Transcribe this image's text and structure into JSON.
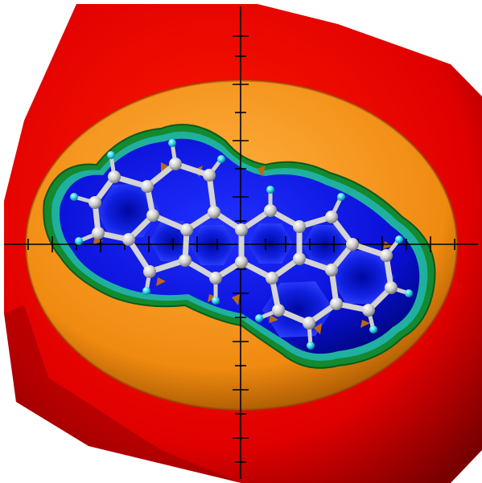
{
  "scene": {
    "background_color": "#ffffff",
    "surface_colors": {
      "outer": "#e00000",
      "outer_dark": "#8a0000",
      "middle": "#f08a10",
      "middle_dark": "#a85a05",
      "rim_green": "#1a9a3a",
      "rim_teal": "#20b0a0",
      "inner": "#0a10d8",
      "inner_dark": "#000890"
    },
    "atom_colors": {
      "carbon": "#d8d8d8",
      "hydrogen": "#40e0e8",
      "bond": "#e8e8e8"
    },
    "axes_color": "#000000"
  }
}
